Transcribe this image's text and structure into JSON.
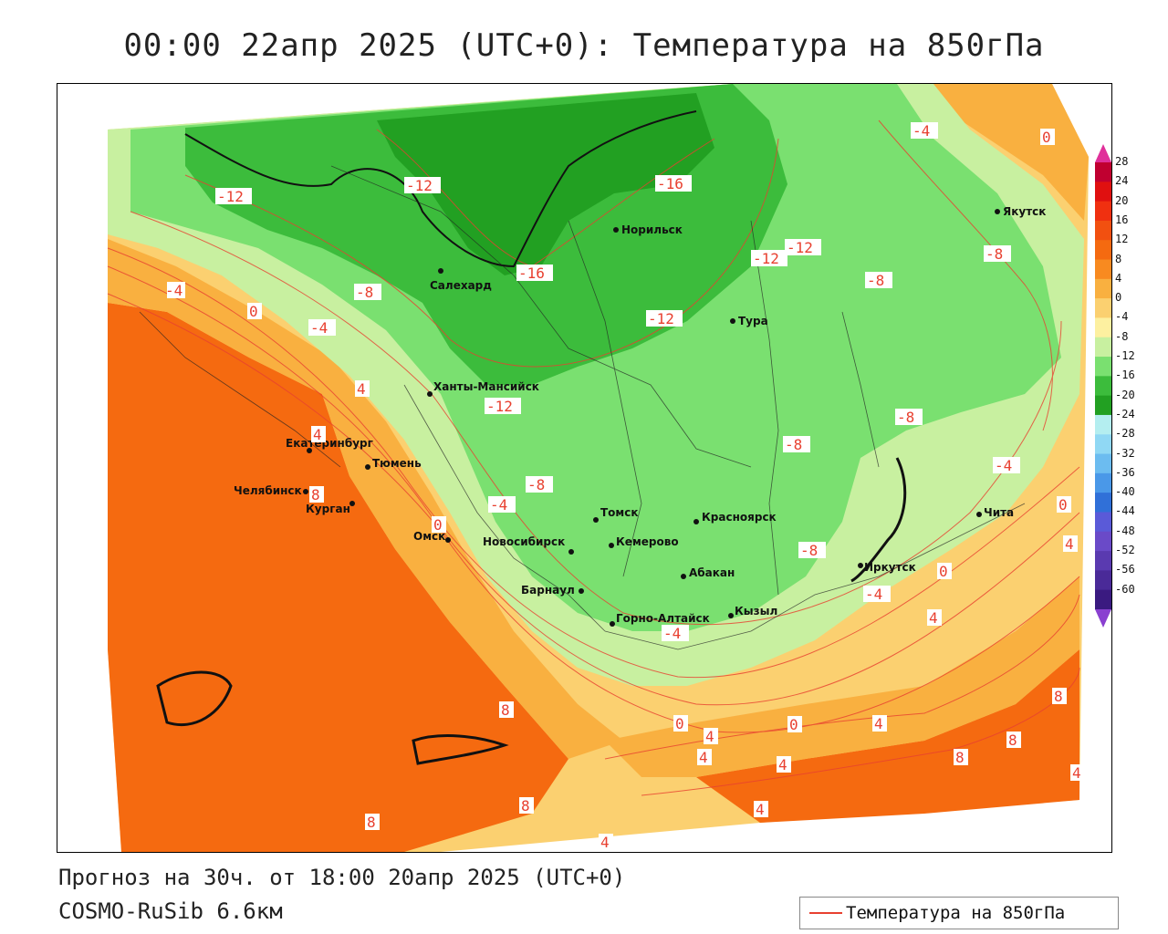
{
  "title": "00:00 22апр 2025 (UTC+0): Температура на 850гПа",
  "footer": {
    "forecast": "Прогноз на 30ч. от 18:00 20апр 2025 (UTC+0)",
    "model": "COSMO-RuSib 6.6км"
  },
  "legend": {
    "label": "Температура на 850гПа",
    "line_color": "#e84030"
  },
  "colorbar": {
    "labels": [
      "28",
      "24",
      "20",
      "16",
      "12",
      "8",
      "4",
      "0",
      "-4",
      "-8",
      "-12",
      "-16",
      "-20",
      "-24",
      "-28",
      "-32",
      "-36",
      "-40",
      "-44",
      "-48",
      "-52",
      "-56",
      "-60"
    ],
    "colors": [
      "#c00030",
      "#e01010",
      "#f03010",
      "#f25010",
      "#f56a10",
      "#f88a20",
      "#f9b040",
      "#fbd070",
      "#fdf0a0",
      "#c8f0a0",
      "#7ae070",
      "#3cbc3c",
      "#22a022",
      "#b4eef0",
      "#90d8f4",
      "#6cbcf0",
      "#4a98e8",
      "#3070d8",
      "#5a5ad8",
      "#6a4ac8",
      "#5a3ab0",
      "#4a2a98",
      "#3a1a80"
    ],
    "top_color": "#e0309a",
    "bottom_color": "#8a40d0"
  },
  "cities": [
    {
      "name": "Норильск"
    },
    {
      "name": "Якутск"
    },
    {
      "name": "Салехард"
    },
    {
      "name": "Тура"
    },
    {
      "name": "Ханты-Мансийск"
    },
    {
      "name": "Екатеринбург"
    },
    {
      "name": "Тюмень"
    },
    {
      "name": "Челябинск"
    },
    {
      "name": "Курган"
    },
    {
      "name": "Омск"
    },
    {
      "name": "Новосибирск"
    },
    {
      "name": "Томск"
    },
    {
      "name": "Кемерово"
    },
    {
      "name": "Красноярск"
    },
    {
      "name": "Барнаул"
    },
    {
      "name": "Абакан"
    },
    {
      "name": "Горно-Алтайск"
    },
    {
      "name": "Кызыл"
    },
    {
      "name": "Иркутск"
    },
    {
      "name": "Чита"
    }
  ],
  "isotherm_labels": [
    "-12",
    "-12",
    "-16",
    "-16",
    "-4",
    "0",
    "-12",
    "-12",
    "-8",
    "-12",
    "-8",
    "-4",
    "0",
    "4",
    "-8",
    "-4",
    "4",
    "-12",
    "-8",
    "-8",
    "-8",
    "-4",
    "8",
    "-4",
    "0",
    "0",
    "-8",
    "-4",
    "0",
    "4",
    "-4",
    "4",
    "8",
    "8",
    "0",
    "4",
    "4",
    "4",
    "8",
    "0",
    "4",
    "8",
    "8",
    "4",
    "4",
    "8",
    "4"
  ]
}
